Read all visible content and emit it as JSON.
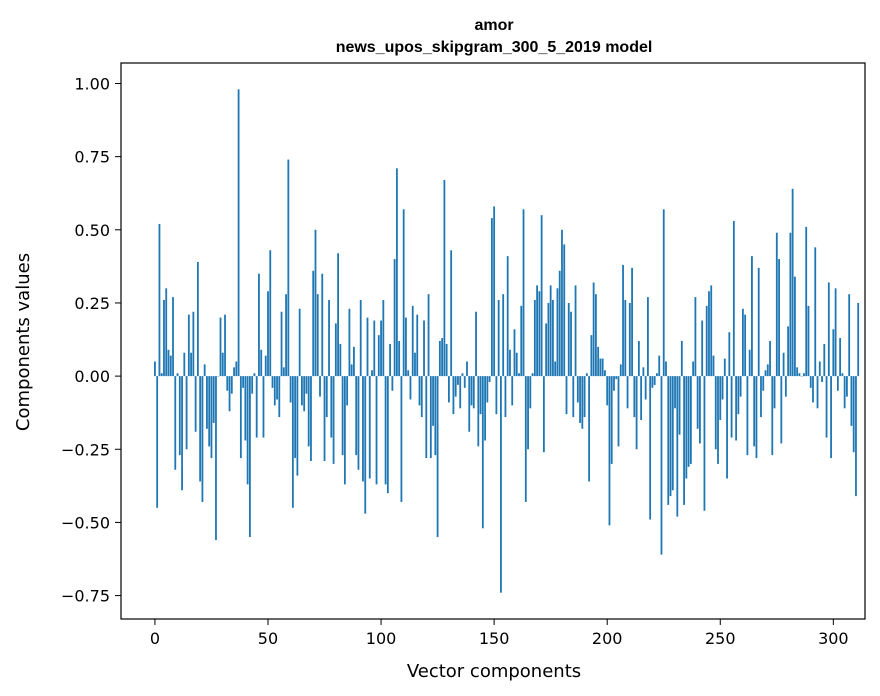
{
  "chart_data": {
    "type": "bar",
    "title": "amor",
    "subtitle": "news_upos_skipgram_300_5_2019 model",
    "xlabel": "Vector components",
    "ylabel": "Components values",
    "xlim": [
      -15,
      314
    ],
    "ylim": [
      -0.83,
      1.07
    ],
    "xticks": [
      0,
      50,
      100,
      150,
      200,
      250,
      300
    ],
    "yticks": [
      -0.75,
      -0.5,
      -0.25,
      0.0,
      0.25,
      0.5,
      0.75,
      1.0
    ],
    "ytick_labels": [
      "−0.75",
      "−0.50",
      "−0.25",
      "0.00",
      "0.25",
      "0.50",
      "0.75",
      "1.00"
    ],
    "bar_color": "#1f77b4",
    "grid": false,
    "x_start": 0,
    "values": [
      0.05,
      -0.45,
      0.52,
      0.01,
      0.26,
      0.3,
      0.09,
      0.07,
      0.27,
      -0.32,
      0.01,
      -0.27,
      -0.39,
      0.08,
      -0.25,
      0.21,
      0.08,
      0.22,
      -0.19,
      0.39,
      -0.36,
      -0.43,
      0.04,
      -0.18,
      -0.24,
      -0.28,
      -0.16,
      -0.56,
      0.0,
      0.2,
      0.08,
      0.21,
      -0.05,
      -0.12,
      -0.06,
      0.03,
      0.05,
      0.98,
      -0.28,
      -0.04,
      -0.22,
      -0.37,
      -0.55,
      -0.06,
      0.01,
      -0.21,
      0.35,
      0.09,
      -0.21,
      0.07,
      0.29,
      0.43,
      -0.04,
      -0.1,
      -0.08,
      -0.14,
      0.22,
      0.03,
      0.28,
      0.74,
      -0.09,
      -0.45,
      -0.28,
      -0.34,
      0.23,
      -0.1,
      -0.12,
      -0.06,
      -0.24,
      -0.29,
      0.36,
      0.5,
      0.28,
      -0.07,
      0.35,
      -0.29,
      -0.14,
      0.26,
      -0.21,
      -0.3,
      0.18,
      0.42,
      0.11,
      -0.27,
      -0.37,
      -0.1,
      0.23,
      0.04,
      0.1,
      -0.27,
      -0.32,
      0.26,
      -0.36,
      -0.47,
      0.2,
      -0.35,
      0.02,
      0.19,
      -0.37,
      0.14,
      0.19,
      0.26,
      -0.37,
      -0.4,
      0.11,
      -0.05,
      0.4,
      0.71,
      0.12,
      -0.43,
      0.57,
      0.2,
      0.02,
      -0.08,
      0.24,
      0.08,
      0.21,
      -0.1,
      -0.14,
      0.19,
      -0.28,
      0.28,
      -0.28,
      -0.17,
      -0.27,
      -0.55,
      0.12,
      0.13,
      0.67,
      0.11,
      -0.09,
      0.43,
      -0.13,
      -0.07,
      -0.03,
      -0.11,
      0.01,
      -0.04,
      0.05,
      -0.19,
      -0.1,
      -0.11,
      0.22,
      -0.24,
      -0.13,
      -0.52,
      -0.22,
      -0.09,
      -0.02,
      0.54,
      0.58,
      -0.13,
      0.26,
      -0.74,
      0.28,
      -0.14,
      0.41,
      0.09,
      -0.1,
      0.16,
      0.08,
      0.01,
      0.24,
      0.57,
      -0.43,
      -0.25,
      -0.11,
      0.01,
      0.26,
      0.31,
      0.29,
      0.55,
      -0.26,
      0.18,
      0.25,
      0.31,
      0.26,
      0.05,
      0.3,
      0.36,
      0.5,
      0.45,
      -0.13,
      0.25,
      0.22,
      -0.14,
      0.31,
      -0.09,
      -0.16,
      -0.18,
      -0.14,
      0.01,
      -0.36,
      0.14,
      0.32,
      0.28,
      0.1,
      0.06,
      0.06,
      0.02,
      -0.1,
      -0.51,
      -0.3,
      -0.05,
      -0.01,
      -0.24,
      0.04,
      0.38,
      0.26,
      -0.11,
      0.25,
      0.37,
      -0.14,
      -0.25,
      0.12,
      -0.15,
      0.03,
      -0.08,
      0.27,
      -0.49,
      -0.04,
      -0.03,
      0.01,
      0.07,
      -0.61,
      0.57,
      0.05,
      -0.44,
      -0.41,
      -0.39,
      -0.11,
      -0.48,
      -0.2,
      0.12,
      -0.44,
      -0.35,
      -0.31,
      -0.3,
      0.05,
      0.27,
      -0.18,
      -0.23,
      0.19,
      -0.46,
      0.24,
      0.29,
      0.31,
      0.07,
      -0.25,
      -0.3,
      -0.15,
      -0.08,
      0.06,
      -0.35,
      0.15,
      -0.21,
      0.53,
      -0.22,
      -0.13,
      -0.07,
      0.23,
      0.21,
      -0.27,
      0.09,
      0.41,
      -0.24,
      -0.28,
      0.37,
      -0.14,
      -0.05,
      0.02,
      0.04,
      0.12,
      -0.27,
      -0.11,
      0.49,
      0.4,
      -0.23,
      0.08,
      -0.07,
      0.17,
      0.49,
      0.64,
      0.34,
      0.03,
      0.01,
      0.0,
      0.01,
      0.51,
      0.24,
      -0.04,
      -0.09,
      0.44,
      -0.11,
      0.05,
      -0.02,
      0.11,
      -0.21,
      0.32,
      -0.28,
      0.16,
      0.3,
      -0.05,
      0.13,
      0.01,
      -0.11,
      -0.07,
      0.28,
      -0.17,
      -0.26,
      -0.41,
      0.25
    ]
  }
}
